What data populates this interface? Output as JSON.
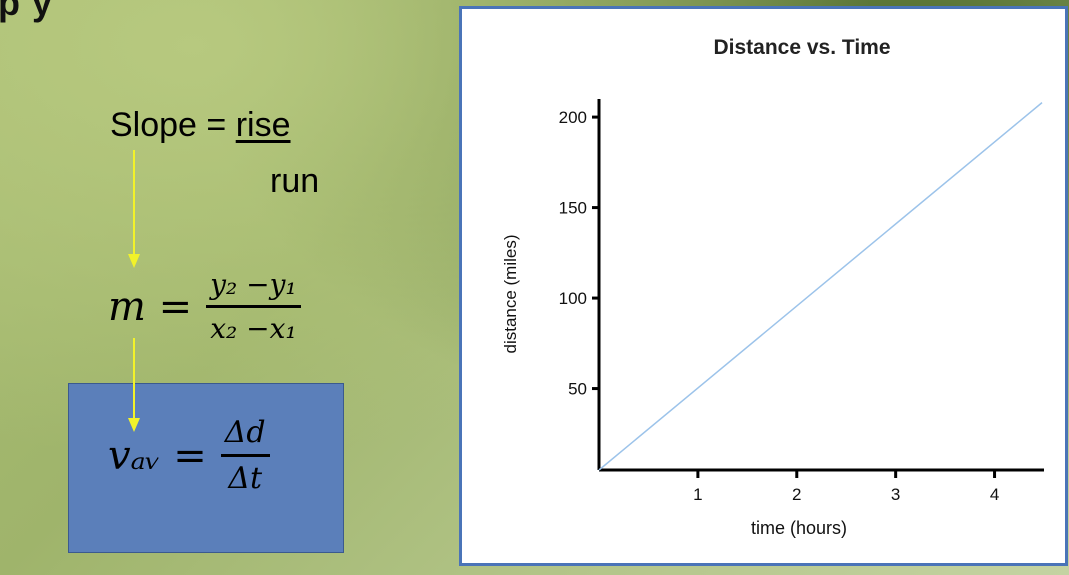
{
  "header_fragment": "p          y",
  "formulas": {
    "slope_label": "Slope = ",
    "rise": "rise",
    "run": "run",
    "m_lhs": "m =",
    "m_num": "y₂ −y₁",
    "m_den": "x₂ −x₁",
    "v_lhs": "vₐᵥ =",
    "v_num": "Δd",
    "v_den": "Δt"
  },
  "colors": {
    "arrow": "#f2f22a",
    "box": "#5b7fba",
    "line": "#9cc3ea",
    "frame": "#4a74b8"
  },
  "chart_data": {
    "type": "line",
    "title": "Distance vs. Time",
    "xlabel": "time (hours)",
    "ylabel": "distance (miles)",
    "xlim": [
      0,
      4.5
    ],
    "ylim": [
      5,
      210
    ],
    "xticks": [
      1,
      2,
      3,
      4
    ],
    "yticks": [
      50,
      100,
      150,
      200
    ],
    "series": [
      {
        "x": [
          0,
          4.48
        ],
        "y": [
          5,
          208
        ]
      }
    ],
    "grid": false
  }
}
